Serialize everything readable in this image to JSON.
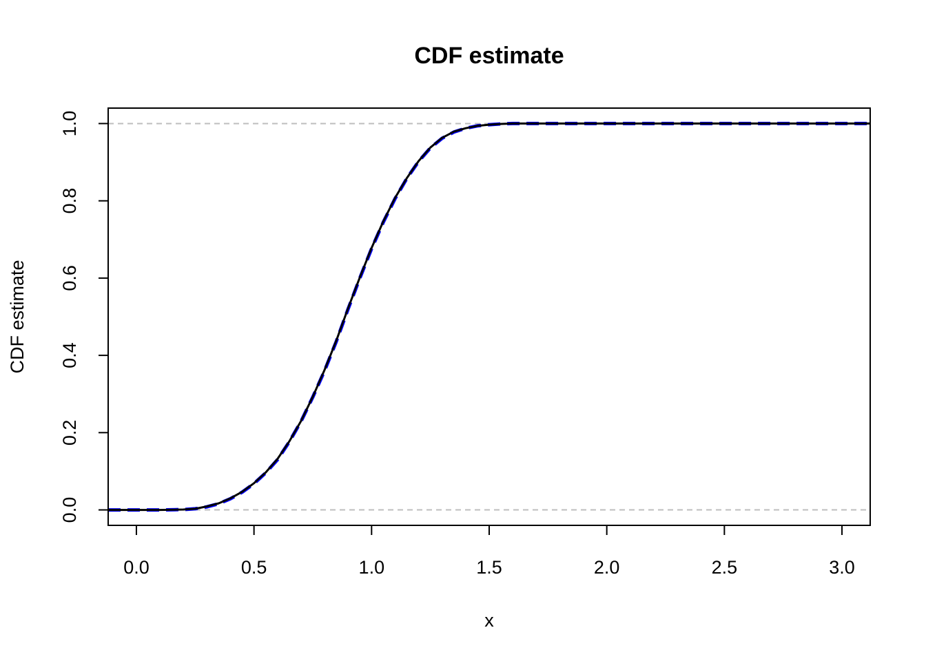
{
  "chart_data": {
    "type": "line",
    "title": "CDF estimate",
    "xlabel": "x",
    "ylabel": "CDF estimate",
    "xlim": [
      -0.12,
      3.12
    ],
    "ylim": [
      -0.04,
      1.04
    ],
    "xticks": [
      0.0,
      0.5,
      1.0,
      1.5,
      2.0,
      2.5,
      3.0
    ],
    "xtick_labels": [
      "0.0",
      "0.5",
      "1.0",
      "1.5",
      "2.0",
      "2.5",
      "3.0"
    ],
    "yticks": [
      0.0,
      0.2,
      0.4,
      0.6,
      0.8,
      1.0
    ],
    "ytick_labels": [
      "0.0",
      "0.2",
      "0.4",
      "0.6",
      "0.8",
      "1.0"
    ],
    "reference_lines": [
      {
        "y": 0.0,
        "color": "#bebebe",
        "style": "dashed"
      },
      {
        "y": 1.0,
        "color": "#bebebe",
        "style": "dashed"
      }
    ],
    "grid": false,
    "series": [
      {
        "color": "#0000ff",
        "style": "dashed",
        "x": [
          -0.12,
          0.0,
          0.1,
          0.2,
          0.25,
          0.3,
          0.35,
          0.4,
          0.45,
          0.5,
          0.55,
          0.6,
          0.65,
          0.7,
          0.75,
          0.8,
          0.85,
          0.9,
          0.95,
          1.0,
          1.05,
          1.1,
          1.15,
          1.2,
          1.25,
          1.3,
          1.35,
          1.4,
          1.45,
          1.5,
          1.55,
          1.6,
          1.7,
          1.8,
          2.0,
          2.5,
          3.0,
          3.12
        ],
        "y": [
          0.0,
          0.0,
          0.0,
          0.001,
          0.003,
          0.008,
          0.016,
          0.029,
          0.046,
          0.068,
          0.096,
          0.13,
          0.176,
          0.229,
          0.292,
          0.36,
          0.436,
          0.52,
          0.6,
          0.676,
          0.745,
          0.806,
          0.858,
          0.902,
          0.937,
          0.962,
          0.978,
          0.988,
          0.994,
          0.997,
          0.999,
          1.0,
          1.0,
          1.0,
          1.0,
          1.0,
          1.0,
          1.0
        ]
      },
      {
        "color": "#000000",
        "style": "solid",
        "x": [
          -0.12,
          0.0,
          0.1,
          0.2,
          0.25,
          0.3,
          0.35,
          0.4,
          0.45,
          0.5,
          0.55,
          0.6,
          0.65,
          0.7,
          0.75,
          0.8,
          0.85,
          0.9,
          0.95,
          1.0,
          1.05,
          1.1,
          1.15,
          1.2,
          1.25,
          1.3,
          1.35,
          1.4,
          1.45,
          1.5,
          1.55,
          1.6,
          1.7,
          1.8,
          2.0,
          2.5,
          3.0,
          3.12
        ],
        "y": [
          0.0,
          0.0,
          0.0,
          0.001,
          0.003,
          0.009,
          0.017,
          0.03,
          0.047,
          0.069,
          0.097,
          0.132,
          0.177,
          0.23,
          0.293,
          0.362,
          0.438,
          0.522,
          0.602,
          0.678,
          0.747,
          0.808,
          0.859,
          0.903,
          0.938,
          0.963,
          0.979,
          0.988,
          0.994,
          0.997,
          0.999,
          1.0,
          1.0,
          1.0,
          1.0,
          1.0,
          1.0,
          1.0
        ]
      }
    ]
  }
}
